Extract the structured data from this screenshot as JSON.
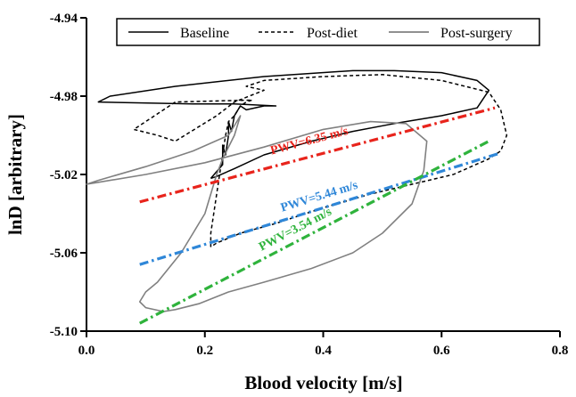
{
  "chart_data": {
    "type": "line",
    "xlabel": "Blood velocity [m/s]",
    "ylabel": "lnD [arbitrary]",
    "xlim": [
      0.0,
      0.8
    ],
    "ylim": [
      -5.1,
      -4.94
    ],
    "xticks": [
      0.0,
      0.2,
      0.4,
      0.6,
      0.8
    ],
    "xtick_labels": [
      "0.0",
      "0.2",
      "0.4",
      "0.6",
      "0.8"
    ],
    "yticks": [
      -5.1,
      -5.06,
      -5.02,
      -4.98,
      -4.94
    ],
    "ytick_labels": [
      "-5.10",
      "-5.06",
      "-5.02",
      "-4.98",
      "-4.94"
    ],
    "grid": false,
    "legend_position": "top",
    "series": [
      {
        "name": "Baseline",
        "style": "solid",
        "color": "#000000",
        "x": [
          0.21,
          0.23,
          0.23,
          0.235,
          0.24,
          0.24,
          0.245,
          0.25,
          0.26,
          0.27,
          0.3,
          0.32,
          0.25,
          0.18,
          0.02,
          0.04,
          0.15,
          0.3,
          0.45,
          0.52,
          0.6,
          0.66,
          0.68,
          0.66,
          0.6,
          0.52,
          0.45,
          0.38,
          0.3,
          0.25,
          0.22,
          0.21
        ],
        "y": [
          -5.022,
          -5.015,
          -5.005,
          -5.01,
          -5.0,
          -4.993,
          -4.998,
          -4.99,
          -4.985,
          -4.987,
          -4.985,
          -4.985,
          -4.984,
          -4.984,
          -4.983,
          -4.98,
          -4.975,
          -4.97,
          -4.967,
          -4.967,
          -4.968,
          -4.972,
          -4.977,
          -4.986,
          -4.99,
          -4.994,
          -4.998,
          -5.003,
          -5.01,
          -5.017,
          -5.021,
          -5.022
        ]
      },
      {
        "name": "Post-diet",
        "style": "dashed",
        "color": "#000000",
        "x": [
          0.21,
          0.21,
          0.215,
          0.22,
          0.225,
          0.23,
          0.235,
          0.24,
          0.25,
          0.26,
          0.27,
          0.28,
          0.15,
          0.08,
          0.12,
          0.15,
          0.22,
          0.25,
          0.3,
          0.27,
          0.3,
          0.4,
          0.5,
          0.6,
          0.68,
          0.7,
          0.71,
          0.7,
          0.68,
          0.62,
          0.55,
          0.48,
          0.4,
          0.32,
          0.26,
          0.22,
          0.21
        ],
        "y": [
          -5.057,
          -5.05,
          -5.04,
          -5.03,
          -5.02,
          -5.01,
          -5.0,
          -4.993,
          -4.99,
          -4.985,
          -4.983,
          -4.982,
          -4.983,
          -4.997,
          -5.0,
          -5.003,
          -4.99,
          -4.983,
          -4.977,
          -4.975,
          -4.972,
          -4.97,
          -4.969,
          -4.972,
          -4.978,
          -4.987,
          -5.0,
          -5.008,
          -5.012,
          -5.02,
          -5.025,
          -5.03,
          -5.037,
          -5.045,
          -5.05,
          -5.055,
          -5.057
        ]
      },
      {
        "name": "Post-surgery",
        "style": "solid",
        "color": "#808080",
        "x": [
          0.13,
          0.1,
          0.09,
          0.1,
          0.12,
          0.16,
          0.17,
          0.18,
          0.19,
          0.2,
          0.205,
          0.21,
          0.215,
          0.22,
          0.23,
          0.25,
          0.26,
          0.24,
          0.18,
          0.1,
          0.02,
          0.0,
          0.02,
          0.1,
          0.2,
          0.3,
          0.4,
          0.48,
          0.54,
          0.575,
          0.57,
          0.55,
          0.5,
          0.45,
          0.38,
          0.3,
          0.24,
          0.19,
          0.15,
          0.13
        ],
        "y": [
          -5.09,
          -5.088,
          -5.085,
          -5.08,
          -5.075,
          -5.06,
          -5.055,
          -5.05,
          -5.045,
          -5.04,
          -5.035,
          -5.03,
          -5.025,
          -5.02,
          -5.012,
          -5.0,
          -4.99,
          -5.0,
          -5.008,
          -5.016,
          -5.023,
          -5.025,
          -5.024,
          -5.02,
          -5.014,
          -5.006,
          -4.997,
          -4.993,
          -4.994,
          -5.003,
          -5.018,
          -5.035,
          -5.05,
          -5.06,
          -5.068,
          -5.075,
          -5.08,
          -5.086,
          -5.089,
          -5.09
        ]
      }
    ],
    "fit_lines": [
      {
        "label": "PWV=6.35 m/s",
        "color": "#e8241c",
        "x": [
          0.09,
          0.69
        ],
        "y": [
          -5.034,
          -4.986
        ]
      },
      {
        "label": "PWV=5.44 m/s",
        "color": "#2f87d8",
        "x": [
          0.09,
          0.7
        ],
        "y": [
          -5.066,
          -5.009
        ]
      },
      {
        "label": "PWV=3.54 m/s",
        "color": "#2fb33c",
        "x": [
          0.09,
          0.68
        ],
        "y": [
          -5.096,
          -5.003
        ]
      }
    ]
  }
}
